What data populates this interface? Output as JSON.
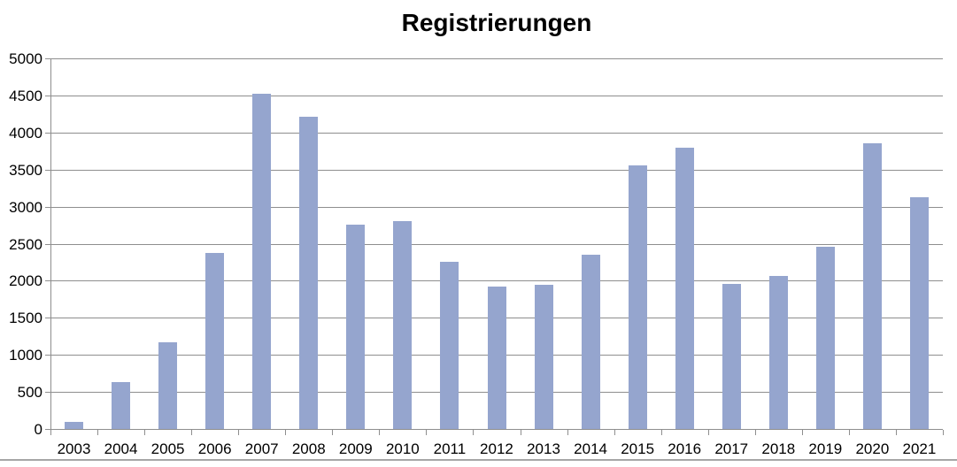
{
  "chart_data": {
    "type": "bar",
    "title": "Registrierungen",
    "categories": [
      "2003",
      "2004",
      "2005",
      "2006",
      "2007",
      "2008",
      "2009",
      "2010",
      "2011",
      "2012",
      "2013",
      "2014",
      "2015",
      "2016",
      "2017",
      "2018",
      "2019",
      "2020",
      "2021"
    ],
    "values": [
      100,
      630,
      1170,
      2370,
      4520,
      4210,
      2760,
      2800,
      2250,
      1920,
      1940,
      2350,
      3560,
      3790,
      1960,
      2060,
      2460,
      3860,
      3130
    ],
    "xlabel": "",
    "ylabel": "",
    "ylim": [
      0,
      5000
    ],
    "ytick_step": 500,
    "ytick_labels": [
      "0",
      "500",
      "1000",
      "1500",
      "2000",
      "2500",
      "3000",
      "3500",
      "4000",
      "4500",
      "5000"
    ],
    "grid": true,
    "legend": false,
    "colors": {
      "bar_fill": "#95A5CE",
      "gridline": "#8E8E8E",
      "axis": "#8E8E8E",
      "bottom_border": "#A6A6A6",
      "text": "#000000",
      "background": "#FFFFFF"
    }
  }
}
